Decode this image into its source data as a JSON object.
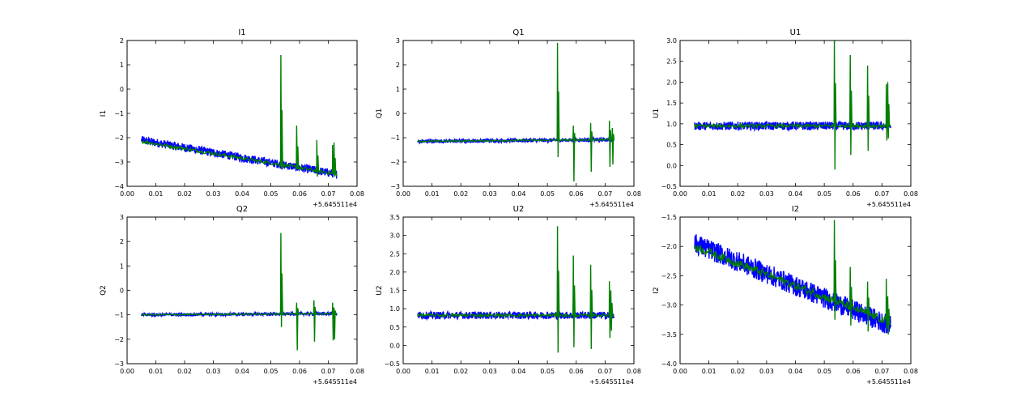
{
  "chart_data": [
    {
      "type": "line",
      "title": "I1",
      "ylabel": "I1",
      "xlabel": "",
      "x_offset_label": "+5.645511e4",
      "xlim": [
        0.0,
        0.08
      ],
      "ylim": [
        -4,
        2
      ],
      "xticks": [
        "0.00",
        "0.01",
        "0.02",
        "0.03",
        "0.04",
        "0.05",
        "0.06",
        "0.07",
        "0.08"
      ],
      "yticks": [
        "−4",
        "−3",
        "−2",
        "−1",
        "0",
        "1",
        "2"
      ],
      "series": [
        {
          "name": "blue",
          "color": "#0000ff",
          "x_start": 0.005,
          "x_end": 0.073,
          "y_start": -2.1,
          "y_end": -3.5,
          "band": 0.35
        },
        {
          "name": "green",
          "color": "#007f00",
          "base_start": -2.15,
          "base_end": -3.5,
          "spikes": [
            {
              "x": 0.0535,
              "low": -3.3,
              "high": 1.4
            },
            {
              "x": 0.059,
              "low": -3.3,
              "high": -1.5
            },
            {
              "x": 0.066,
              "low": -3.6,
              "high": -2.1
            },
            {
              "x": 0.0715,
              "low": -3.5,
              "high": -2.3
            },
            {
              "x": 0.072,
              "low": -3.6,
              "high": -2.2
            }
          ]
        }
      ]
    },
    {
      "type": "line",
      "title": "Q1",
      "ylabel": "Q1",
      "xlabel": "",
      "x_offset_label": "+5.645511e4",
      "xlim": [
        0.0,
        0.08
      ],
      "ylim": [
        -3,
        3
      ],
      "xticks": [
        "0.00",
        "0.01",
        "0.02",
        "0.03",
        "0.04",
        "0.05",
        "0.06",
        "0.07",
        "0.08"
      ],
      "yticks": [
        "−3",
        "−2",
        "−1",
        "0",
        "1",
        "2",
        "3"
      ],
      "series": [
        {
          "name": "blue",
          "color": "#0000ff",
          "x_start": 0.005,
          "x_end": 0.073,
          "y_start": -1.15,
          "y_end": -1.08,
          "band": 0.15
        },
        {
          "name": "green",
          "color": "#007f00",
          "base_start": -1.15,
          "base_end": -1.08,
          "spikes": [
            {
              "x": 0.0535,
              "low": -1.8,
              "high": 2.9
            },
            {
              "x": 0.059,
              "low": -2.8,
              "high": -0.5
            },
            {
              "x": 0.065,
              "low": -2.4,
              "high": -0.4
            },
            {
              "x": 0.0715,
              "low": -2.2,
              "high": -0.3
            },
            {
              "x": 0.0725,
              "low": -2.1,
              "high": -0.6
            }
          ]
        }
      ]
    },
    {
      "type": "line",
      "title": "U1",
      "ylabel": "U1",
      "xlabel": "",
      "x_offset_label": "+5.645511e4",
      "xlim": [
        0.0,
        0.08
      ],
      "ylim": [
        -0.5,
        3.0
      ],
      "xticks": [
        "0.00",
        "0.01",
        "0.02",
        "0.03",
        "0.04",
        "0.05",
        "0.06",
        "0.07",
        "0.08"
      ],
      "yticks": [
        "−0.5",
        "0.0",
        "0.5",
        "1.0",
        "1.5",
        "2.0",
        "2.5",
        "3.0"
      ],
      "series": [
        {
          "name": "blue",
          "color": "#0000ff",
          "x_start": 0.005,
          "x_end": 0.073,
          "y_start": 0.95,
          "y_end": 0.95,
          "band": 0.2
        },
        {
          "name": "green",
          "color": "#007f00",
          "base_start": 0.95,
          "base_end": 0.95,
          "spikes": [
            {
              "x": 0.0535,
              "low": -0.1,
              "high": 3.0
            },
            {
              "x": 0.059,
              "low": 0.25,
              "high": 2.65
            },
            {
              "x": 0.065,
              "low": 0.35,
              "high": 2.4
            },
            {
              "x": 0.0715,
              "low": 0.6,
              "high": 1.95
            },
            {
              "x": 0.072,
              "low": 0.65,
              "high": 2.0
            }
          ]
        }
      ]
    },
    {
      "type": "line",
      "title": "Q2",
      "ylabel": "Q2",
      "xlabel": "",
      "x_offset_label": "+5.645511e4",
      "xlim": [
        0.0,
        0.08
      ],
      "ylim": [
        -3,
        3
      ],
      "xticks": [
        "0.00",
        "0.01",
        "0.02",
        "0.03",
        "0.04",
        "0.05",
        "0.06",
        "0.07",
        "0.08"
      ],
      "yticks": [
        "−3",
        "−2",
        "−1",
        "0",
        "1",
        "2",
        "3"
      ],
      "series": [
        {
          "name": "blue",
          "color": "#0000ff",
          "x_start": 0.005,
          "x_end": 0.073,
          "y_start": -1.0,
          "y_end": -0.95,
          "band": 0.12
        },
        {
          "name": "green",
          "color": "#007f00",
          "base_start": -1.0,
          "base_end": -0.95,
          "spikes": [
            {
              "x": 0.0535,
              "low": -1.5,
              "high": 2.35
            },
            {
              "x": 0.059,
              "low": -2.45,
              "high": -0.5
            },
            {
              "x": 0.065,
              "low": -2.1,
              "high": -0.4
            },
            {
              "x": 0.0715,
              "low": -2.05,
              "high": -0.5
            },
            {
              "x": 0.072,
              "low": -2.0,
              "high": -0.7
            }
          ]
        }
      ]
    },
    {
      "type": "line",
      "title": "U2",
      "ylabel": "U2",
      "xlabel": "",
      "x_offset_label": "+5.645511e4",
      "xlim": [
        0.0,
        0.08
      ],
      "ylim": [
        -0.5,
        3.5
      ],
      "xticks": [
        "0.00",
        "0.01",
        "0.02",
        "0.03",
        "0.04",
        "0.05",
        "0.06",
        "0.07",
        "0.08"
      ],
      "yticks": [
        "−0.5",
        "0.0",
        "0.5",
        "1.0",
        "1.5",
        "2.0",
        "2.5",
        "3.0",
        "3.5"
      ],
      "series": [
        {
          "name": "blue",
          "color": "#0000ff",
          "x_start": 0.005,
          "x_end": 0.073,
          "y_start": 0.82,
          "y_end": 0.82,
          "band": 0.2
        },
        {
          "name": "green",
          "color": "#007f00",
          "base_start": 0.82,
          "base_end": 0.82,
          "spikes": [
            {
              "x": 0.0535,
              "low": -0.2,
              "high": 3.25
            },
            {
              "x": 0.059,
              "low": -0.05,
              "high": 2.45
            },
            {
              "x": 0.065,
              "low": -0.1,
              "high": 2.2
            },
            {
              "x": 0.0715,
              "low": 0.2,
              "high": 1.75
            },
            {
              "x": 0.072,
              "low": 0.4,
              "high": 1.5
            }
          ]
        }
      ]
    },
    {
      "type": "line",
      "title": "I2",
      "ylabel": "I2",
      "xlabel": "",
      "x_offset_label": "+5.645511e4",
      "xlim": [
        0.0,
        0.08
      ],
      "ylim": [
        -4.0,
        -1.5
      ],
      "xticks": [
        "0.00",
        "0.01",
        "0.02",
        "0.03",
        "0.04",
        "0.05",
        "0.06",
        "0.07",
        "0.08"
      ],
      "yticks": [
        "−4.0",
        "−3.5",
        "−3.0",
        "−2.5",
        "−2.0",
        "−1.5"
      ],
      "series": [
        {
          "name": "blue",
          "color": "#0000ff",
          "x_start": 0.005,
          "x_end": 0.073,
          "y_start": -1.95,
          "y_end": -3.35,
          "band": 0.35
        },
        {
          "name": "green",
          "color": "#007f00",
          "base_start": -2.0,
          "base_end": -3.3,
          "spikes": [
            {
              "x": 0.0535,
              "low": -3.25,
              "high": -1.55
            },
            {
              "x": 0.059,
              "low": -3.35,
              "high": -2.35
            },
            {
              "x": 0.065,
              "low": -3.45,
              "high": -2.6
            },
            {
              "x": 0.0715,
              "low": -3.4,
              "high": -2.55
            },
            {
              "x": 0.072,
              "low": -3.5,
              "high": -2.85
            }
          ]
        }
      ]
    }
  ]
}
